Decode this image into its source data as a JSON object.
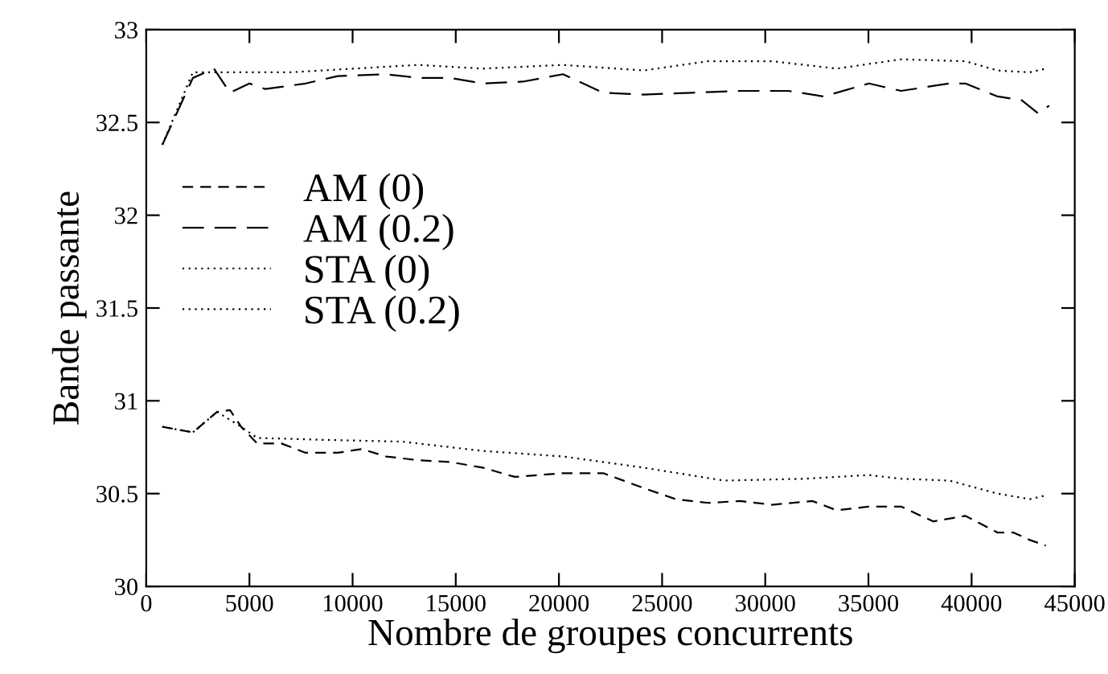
{
  "chart_data": {
    "type": "line",
    "xlabel": "Nombre de groupes concurrents",
    "ylabel": "Bande passante",
    "xlim": [
      0,
      45000
    ],
    "xticks": [
      0,
      5000,
      10000,
      15000,
      20000,
      25000,
      30000,
      35000,
      40000,
      45000
    ],
    "ylim": [
      30,
      33
    ],
    "yticks": [
      30,
      30.5,
      31,
      31.5,
      32,
      32.5,
      33
    ],
    "grid": false,
    "legend": "left",
    "marker": "none",
    "series": [
      {
        "name": "AM (0)",
        "color": "#000000",
        "line_style": "dashed",
        "x": [
          780,
          2260,
          3430,
          4060,
          4600,
          5380,
          6550,
          7720,
          9280,
          10450,
          11620,
          13180,
          14740,
          16300,
          17860,
          20200,
          22150,
          24100,
          25660,
          27220,
          28780,
          30340,
          32290,
          33460,
          35020,
          36580,
          38140,
          39700,
          41260,
          42040,
          42820,
          43600
        ],
        "values": [
          30.86,
          30.83,
          30.94,
          30.95,
          30.86,
          30.77,
          30.77,
          30.72,
          30.72,
          30.74,
          30.7,
          30.68,
          30.67,
          30.64,
          30.59,
          30.61,
          30.61,
          30.53,
          30.47,
          30.45,
          30.46,
          30.44,
          30.46,
          30.41,
          30.43,
          30.43,
          30.35,
          30.38,
          30.29,
          30.29,
          30.25,
          30.22
        ]
      },
      {
        "name": "AM (0.2)",
        "color": "#000000",
        "line_style": "dashed",
        "x": [
          780,
          2260,
          3280,
          4060,
          5000,
          5770,
          7720,
          9280,
          11620,
          13180,
          14740,
          16300,
          18250,
          20200,
          22150,
          24100,
          26440,
          28780,
          31120,
          32840,
          35020,
          36580,
          38920,
          39700,
          41260,
          42430,
          43210,
          43760
        ],
        "values": [
          32.38,
          32.74,
          32.79,
          32.66,
          32.71,
          32.68,
          32.71,
          32.75,
          32.76,
          32.74,
          32.74,
          32.71,
          32.72,
          32.76,
          32.66,
          32.65,
          32.66,
          32.67,
          32.67,
          32.64,
          32.71,
          32.67,
          32.71,
          32.71,
          32.64,
          32.62,
          32.55,
          32.59
        ]
      },
      {
        "name": "STA (0)",
        "color": "#000000",
        "line_style": "dotted",
        "x": [
          780,
          2260,
          3430,
          4600,
          5380,
          8500,
          12400,
          16300,
          20200,
          24100,
          28000,
          31900,
          35020,
          36580,
          38920,
          41260,
          42820,
          43600
        ],
        "values": [
          30.86,
          30.83,
          30.94,
          30.86,
          30.8,
          30.79,
          30.78,
          30.73,
          30.7,
          30.64,
          30.57,
          30.58,
          30.6,
          30.58,
          30.57,
          30.5,
          30.47,
          30.49
        ]
      },
      {
        "name": "STA (0.2)",
        "color": "#000000",
        "line_style": "dotted",
        "x": [
          780,
          2260,
          4600,
          6940,
          10060,
          13180,
          16300,
          20200,
          24100,
          27220,
          30340,
          33460,
          36580,
          39700,
          41260,
          42820,
          43600
        ],
        "values": [
          32.38,
          32.77,
          32.77,
          32.77,
          32.79,
          32.81,
          32.79,
          32.81,
          32.78,
          32.83,
          32.83,
          32.79,
          32.84,
          32.83,
          32.78,
          32.77,
          32.79
        ]
      }
    ]
  }
}
